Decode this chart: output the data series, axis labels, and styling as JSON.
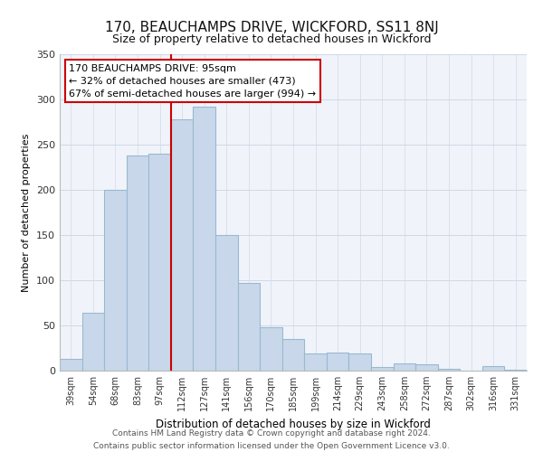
{
  "title": "170, BEAUCHAMPS DRIVE, WICKFORD, SS11 8NJ",
  "subtitle": "Size of property relative to detached houses in Wickford",
  "xlabel": "Distribution of detached houses by size in Wickford",
  "ylabel": "Number of detached properties",
  "bar_labels": [
    "39sqm",
    "54sqm",
    "68sqm",
    "83sqm",
    "97sqm",
    "112sqm",
    "127sqm",
    "141sqm",
    "156sqm",
    "170sqm",
    "185sqm",
    "199sqm",
    "214sqm",
    "229sqm",
    "243sqm",
    "258sqm",
    "272sqm",
    "287sqm",
    "302sqm",
    "316sqm",
    "331sqm"
  ],
  "bar_values": [
    13,
    64,
    200,
    238,
    240,
    278,
    292,
    150,
    97,
    48,
    35,
    19,
    20,
    19,
    4,
    8,
    7,
    2,
    0,
    5,
    1
  ],
  "bar_color": "#c8d8ea",
  "bar_edge_color": "#9ab8d0",
  "vline_x_index": 4,
  "vline_color": "#cc0000",
  "ylim": [
    0,
    350
  ],
  "yticks": [
    0,
    50,
    100,
    150,
    200,
    250,
    300,
    350
  ],
  "annotation_text": "170 BEAUCHAMPS DRIVE: 95sqm\n← 32% of detached houses are smaller (473)\n67% of semi-detached houses are larger (994) →",
  "annotation_box_color": "#ffffff",
  "annotation_box_edge": "#cc0000",
  "footer_line1": "Contains HM Land Registry data © Crown copyright and database right 2024.",
  "footer_line2": "Contains public sector information licensed under the Open Government Licence v3.0.",
  "background_color": "#ffffff",
  "plot_background": "#f0f4fa",
  "grid_color": "#d0d8e8"
}
